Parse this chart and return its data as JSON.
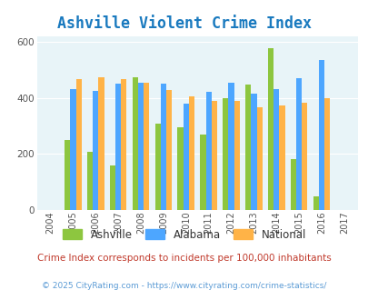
{
  "title": "Ashville Violent Crime Index",
  "years": [
    2004,
    2005,
    2006,
    2007,
    2008,
    2009,
    2010,
    2011,
    2012,
    2013,
    2014,
    2015,
    2016,
    2017
  ],
  "ashville": [
    null,
    248,
    207,
    160,
    473,
    308,
    295,
    268,
    400,
    448,
    578,
    180,
    50,
    null
  ],
  "alabama": [
    null,
    430,
    424,
    450,
    452,
    450,
    380,
    420,
    452,
    415,
    430,
    470,
    535,
    null
  ],
  "national": [
    null,
    468,
    472,
    465,
    455,
    428,
    405,
    388,
    390,
    365,
    373,
    382,
    400,
    null
  ],
  "colors": {
    "ashville": "#8dc63f",
    "alabama": "#4da6ff",
    "national": "#ffb347"
  },
  "ylim": [
    0,
    620
  ],
  "yticks": [
    0,
    200,
    400,
    600
  ],
  "bg_color": "#e8f4f8",
  "subtitle": "Crime Index corresponds to incidents per 100,000 inhabitants",
  "footer": "© 2025 CityRating.com - https://www.cityrating.com/crime-statistics/",
  "title_color": "#1a7abf",
  "subtitle_color": "#c0392b",
  "footer_color": "#5b9bd5"
}
